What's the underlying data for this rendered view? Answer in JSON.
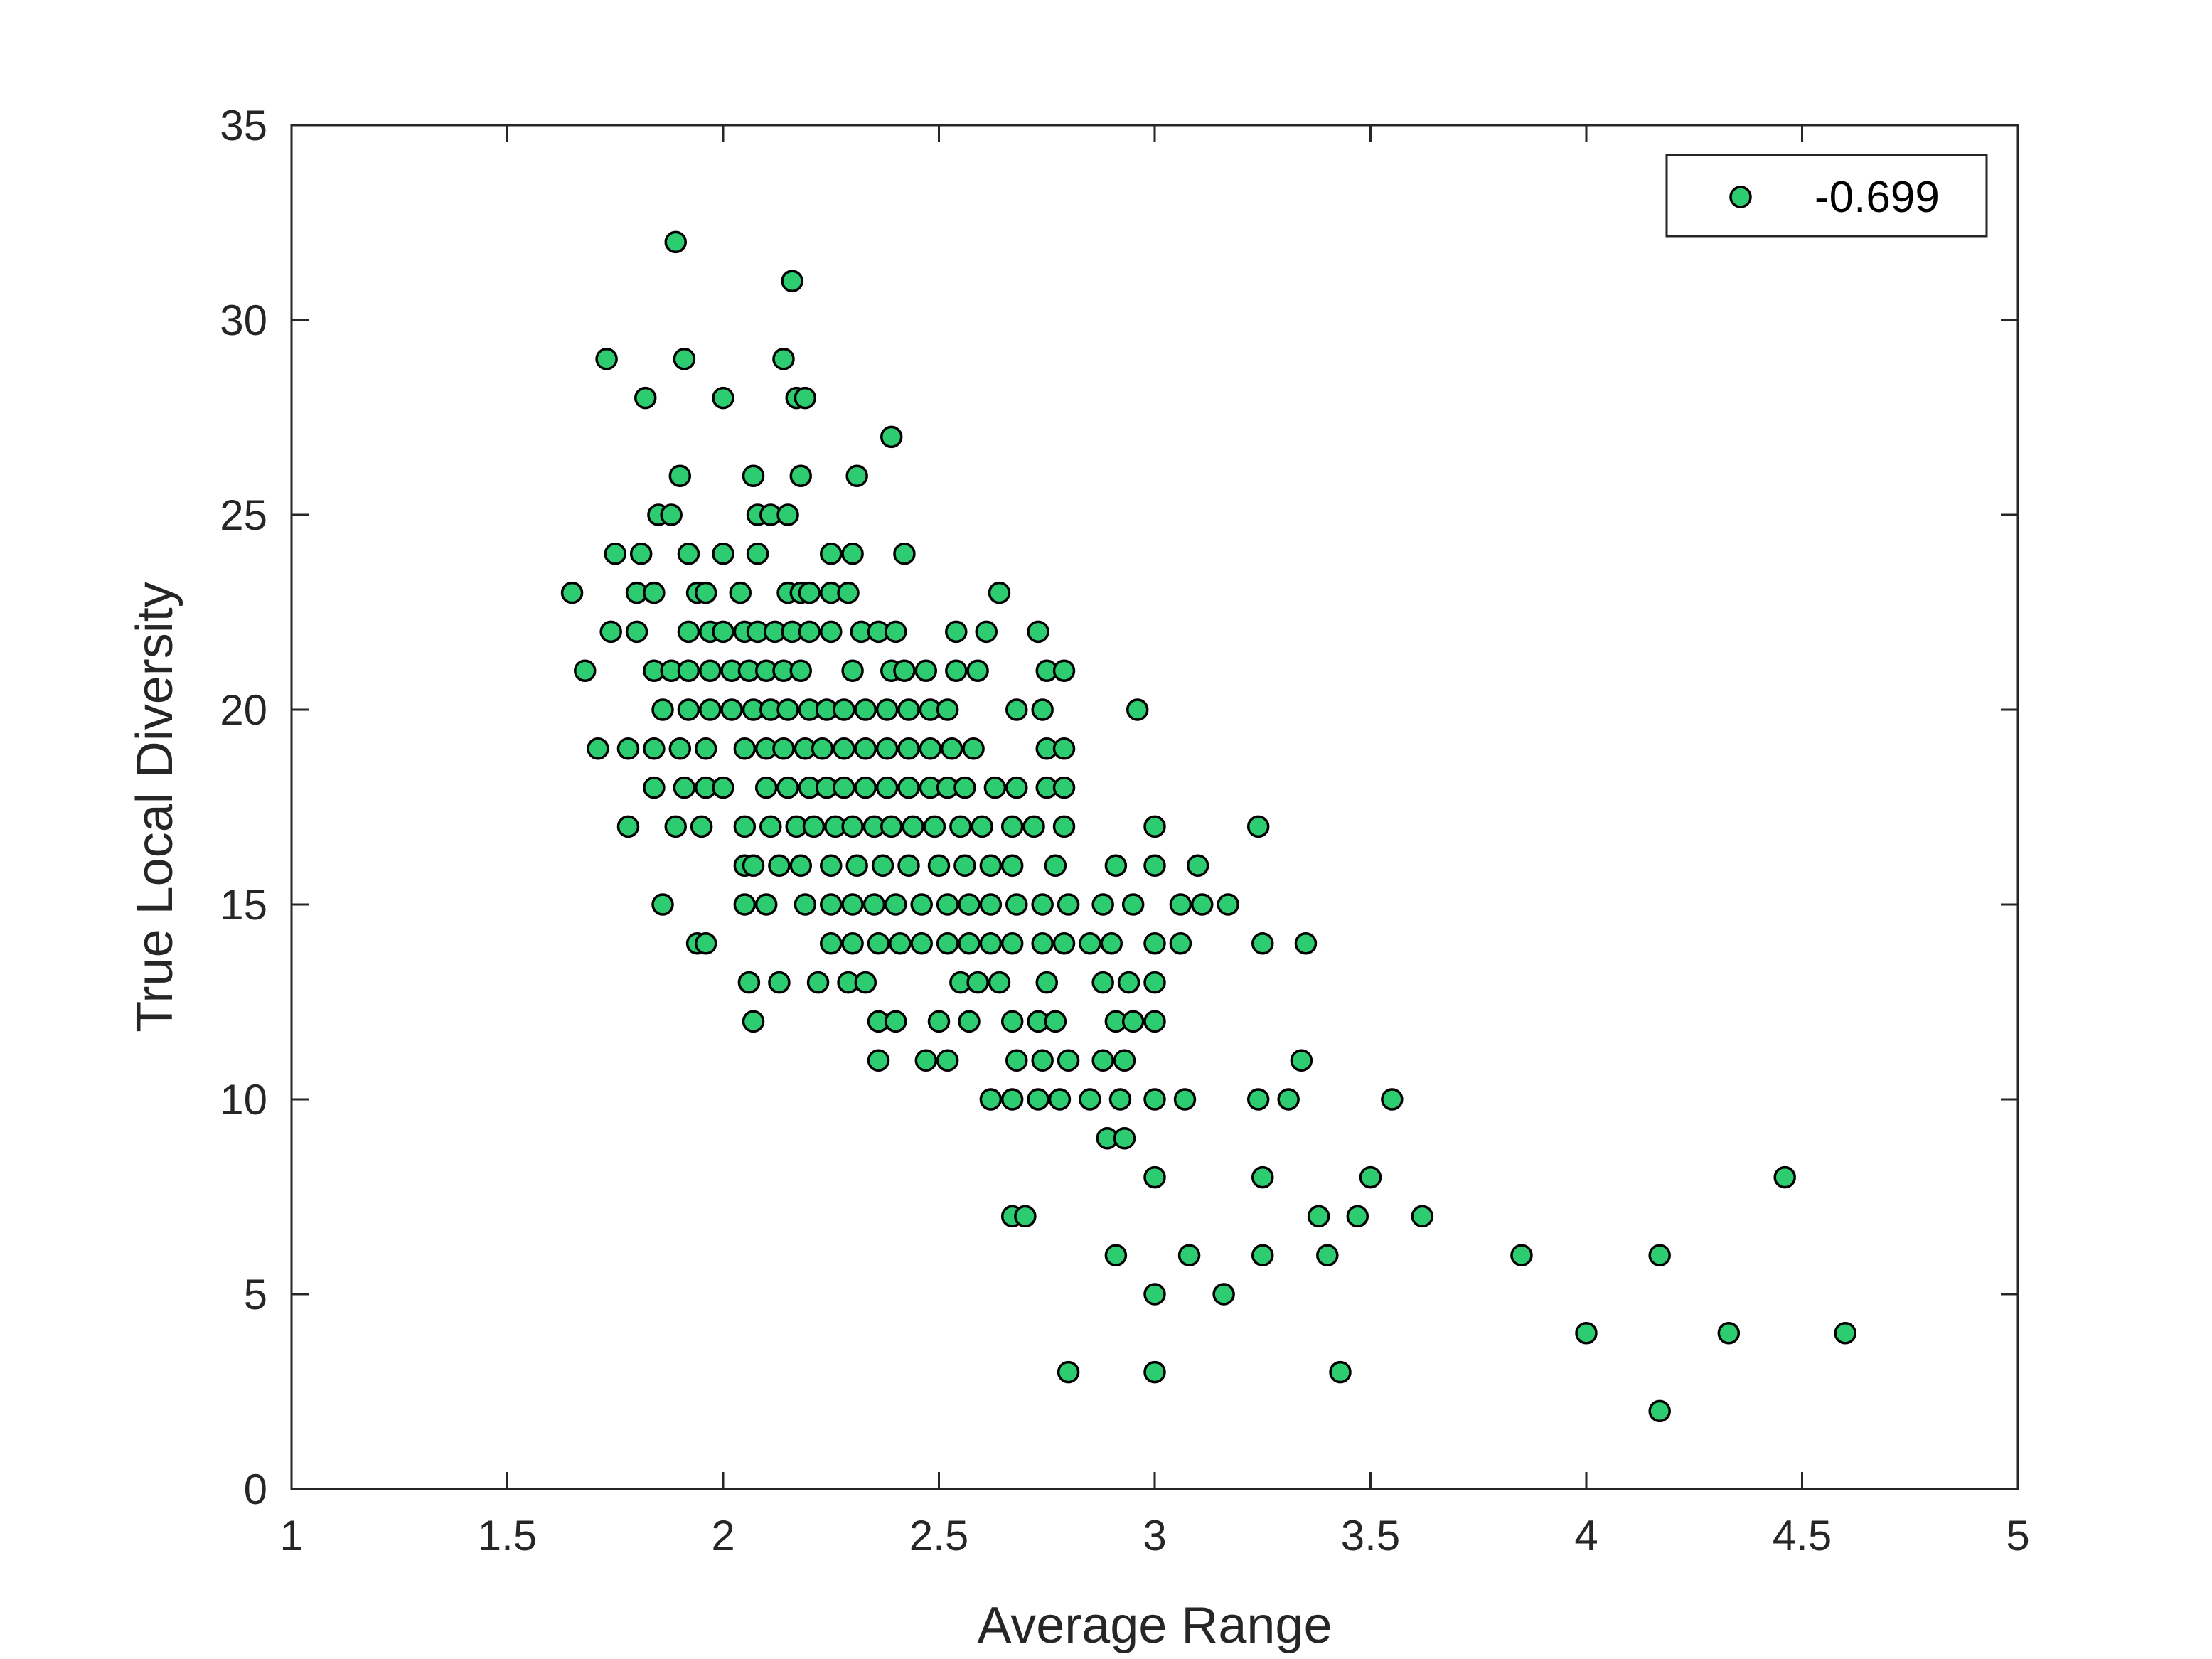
{
  "chart_data": {
    "type": "scatter",
    "xlabel": "Average Range",
    "ylabel": "True Local Diversity",
    "xlim": [
      1,
      5
    ],
    "ylim": [
      0,
      35
    ],
    "xticks": [
      1,
      1.5,
      2,
      2.5,
      3,
      3.5,
      4,
      4.5,
      5
    ],
    "yticks": [
      0,
      5,
      10,
      15,
      20,
      25,
      30,
      35
    ],
    "xtick_labels": [
      "1",
      "1.5",
      "2",
      "2.5",
      "3",
      "3.5",
      "4",
      "4.5",
      "5"
    ],
    "ytick_labels": [
      "0",
      "5",
      "10",
      "15",
      "20",
      "25",
      "30",
      "35"
    ],
    "grid": false,
    "legend": {
      "position": "top-right",
      "entries": [
        "-0.699"
      ]
    },
    "colors": {
      "marker_fill": "#2ecc71",
      "marker_edge": "#000000",
      "axes": "#262626"
    },
    "series": [
      {
        "name": "-0.699",
        "points": [
          [
            1.89,
            32
          ],
          [
            2.16,
            31
          ],
          [
            1.73,
            29
          ],
          [
            1.91,
            29
          ],
          [
            2.14,
            29
          ],
          [
            1.82,
            28
          ],
          [
            2.0,
            28
          ],
          [
            2.17,
            28
          ],
          [
            2.19,
            28
          ],
          [
            2.39,
            27
          ],
          [
            1.9,
            26
          ],
          [
            2.07,
            26
          ],
          [
            2.18,
            26
          ],
          [
            2.31,
            26
          ],
          [
            1.85,
            25
          ],
          [
            1.88,
            25
          ],
          [
            2.08,
            25
          ],
          [
            2.11,
            25
          ],
          [
            2.15,
            25
          ],
          [
            1.75,
            24
          ],
          [
            1.81,
            24
          ],
          [
            1.92,
            24
          ],
          [
            2.0,
            24
          ],
          [
            2.08,
            24
          ],
          [
            2.25,
            24
          ],
          [
            2.3,
            24
          ],
          [
            2.42,
            24
          ],
          [
            1.65,
            23
          ],
          [
            1.8,
            23
          ],
          [
            1.84,
            23
          ],
          [
            1.94,
            23
          ],
          [
            1.96,
            23
          ],
          [
            2.04,
            23
          ],
          [
            2.15,
            23
          ],
          [
            2.18,
            23
          ],
          [
            2.2,
            23
          ],
          [
            2.25,
            23
          ],
          [
            2.29,
            23
          ],
          [
            2.64,
            23
          ],
          [
            1.74,
            22
          ],
          [
            1.8,
            22
          ],
          [
            1.92,
            22
          ],
          [
            1.97,
            22
          ],
          [
            2.0,
            22
          ],
          [
            2.05,
            22
          ],
          [
            2.08,
            22
          ],
          [
            2.12,
            22
          ],
          [
            2.16,
            22
          ],
          [
            2.2,
            22
          ],
          [
            2.25,
            22
          ],
          [
            2.32,
            22
          ],
          [
            2.36,
            22
          ],
          [
            2.4,
            22
          ],
          [
            2.54,
            22
          ],
          [
            2.61,
            22
          ],
          [
            2.73,
            22
          ],
          [
            1.68,
            21
          ],
          [
            1.84,
            21
          ],
          [
            1.88,
            21
          ],
          [
            1.92,
            21
          ],
          [
            1.97,
            21
          ],
          [
            2.02,
            21
          ],
          [
            2.06,
            21
          ],
          [
            2.1,
            21
          ],
          [
            2.14,
            21
          ],
          [
            2.18,
            21
          ],
          [
            2.3,
            21
          ],
          [
            2.39,
            21
          ],
          [
            2.42,
            21
          ],
          [
            2.47,
            21
          ],
          [
            2.54,
            21
          ],
          [
            2.59,
            21
          ],
          [
            2.75,
            21
          ],
          [
            2.79,
            21
          ],
          [
            1.86,
            20
          ],
          [
            1.92,
            20
          ],
          [
            1.97,
            20
          ],
          [
            2.02,
            20
          ],
          [
            2.07,
            20
          ],
          [
            2.11,
            20
          ],
          [
            2.15,
            20
          ],
          [
            2.2,
            20
          ],
          [
            2.24,
            20
          ],
          [
            2.28,
            20
          ],
          [
            2.33,
            20
          ],
          [
            2.38,
            20
          ],
          [
            2.43,
            20
          ],
          [
            2.48,
            20
          ],
          [
            2.52,
            20
          ],
          [
            2.68,
            20
          ],
          [
            2.74,
            20
          ],
          [
            2.96,
            20
          ],
          [
            1.71,
            19
          ],
          [
            1.78,
            19
          ],
          [
            1.84,
            19
          ],
          [
            1.9,
            19
          ],
          [
            1.96,
            19
          ],
          [
            2.05,
            19
          ],
          [
            2.1,
            19
          ],
          [
            2.14,
            19
          ],
          [
            2.19,
            19
          ],
          [
            2.23,
            19
          ],
          [
            2.28,
            19
          ],
          [
            2.33,
            19
          ],
          [
            2.38,
            19
          ],
          [
            2.43,
            19
          ],
          [
            2.48,
            19
          ],
          [
            2.53,
            19
          ],
          [
            2.58,
            19
          ],
          [
            2.75,
            19
          ],
          [
            2.79,
            19
          ],
          [
            1.84,
            18
          ],
          [
            1.91,
            18
          ],
          [
            1.96,
            18
          ],
          [
            2.0,
            18
          ],
          [
            2.1,
            18
          ],
          [
            2.15,
            18
          ],
          [
            2.2,
            18
          ],
          [
            2.24,
            18
          ],
          [
            2.28,
            18
          ],
          [
            2.33,
            18
          ],
          [
            2.38,
            18
          ],
          [
            2.43,
            18
          ],
          [
            2.48,
            18
          ],
          [
            2.52,
            18
          ],
          [
            2.56,
            18
          ],
          [
            2.63,
            18
          ],
          [
            2.68,
            18
          ],
          [
            2.75,
            18
          ],
          [
            2.79,
            18
          ],
          [
            1.78,
            17
          ],
          [
            1.89,
            17
          ],
          [
            1.95,
            17
          ],
          [
            2.05,
            17
          ],
          [
            2.11,
            17
          ],
          [
            2.17,
            17
          ],
          [
            2.21,
            17
          ],
          [
            2.26,
            17
          ],
          [
            2.3,
            17
          ],
          [
            2.35,
            17
          ],
          [
            2.39,
            17
          ],
          [
            2.44,
            17
          ],
          [
            2.49,
            17
          ],
          [
            2.55,
            17
          ],
          [
            2.6,
            17
          ],
          [
            2.67,
            17
          ],
          [
            2.72,
            17
          ],
          [
            2.79,
            17
          ],
          [
            3.0,
            17
          ],
          [
            3.24,
            17
          ],
          [
            2.05,
            16
          ],
          [
            2.07,
            16
          ],
          [
            2.13,
            16
          ],
          [
            2.18,
            16
          ],
          [
            2.25,
            16
          ],
          [
            2.31,
            16
          ],
          [
            2.37,
            16
          ],
          [
            2.43,
            16
          ],
          [
            2.5,
            16
          ],
          [
            2.56,
            16
          ],
          [
            2.62,
            16
          ],
          [
            2.67,
            16
          ],
          [
            2.77,
            16
          ],
          [
            2.91,
            16
          ],
          [
            3.0,
            16
          ],
          [
            3.1,
            16
          ],
          [
            1.86,
            15
          ],
          [
            2.05,
            15
          ],
          [
            2.1,
            15
          ],
          [
            2.19,
            15
          ],
          [
            2.25,
            15
          ],
          [
            2.3,
            15
          ],
          [
            2.35,
            15
          ],
          [
            2.4,
            15
          ],
          [
            2.46,
            15
          ],
          [
            2.52,
            15
          ],
          [
            2.57,
            15
          ],
          [
            2.62,
            15
          ],
          [
            2.68,
            15
          ],
          [
            2.74,
            15
          ],
          [
            2.8,
            15
          ],
          [
            2.88,
            15
          ],
          [
            2.95,
            15
          ],
          [
            3.06,
            15
          ],
          [
            3.11,
            15
          ],
          [
            3.17,
            15
          ],
          [
            1.94,
            14
          ],
          [
            1.96,
            14
          ],
          [
            2.25,
            14
          ],
          [
            2.3,
            14
          ],
          [
            2.36,
            14
          ],
          [
            2.41,
            14
          ],
          [
            2.46,
            14
          ],
          [
            2.52,
            14
          ],
          [
            2.57,
            14
          ],
          [
            2.62,
            14
          ],
          [
            2.67,
            14
          ],
          [
            2.74,
            14
          ],
          [
            2.79,
            14
          ],
          [
            2.85,
            14
          ],
          [
            2.9,
            14
          ],
          [
            3.0,
            14
          ],
          [
            3.06,
            14
          ],
          [
            3.25,
            14
          ],
          [
            3.35,
            14
          ],
          [
            2.06,
            13
          ],
          [
            2.13,
            13
          ],
          [
            2.22,
            13
          ],
          [
            2.29,
            13
          ],
          [
            2.33,
            13
          ],
          [
            2.55,
            13
          ],
          [
            2.59,
            13
          ],
          [
            2.64,
            13
          ],
          [
            2.75,
            13
          ],
          [
            2.88,
            13
          ],
          [
            2.94,
            13
          ],
          [
            3.0,
            13
          ],
          [
            2.07,
            12
          ],
          [
            2.36,
            12
          ],
          [
            2.4,
            12
          ],
          [
            2.5,
            12
          ],
          [
            2.57,
            12
          ],
          [
            2.67,
            12
          ],
          [
            2.73,
            12
          ],
          [
            2.77,
            12
          ],
          [
            2.91,
            12
          ],
          [
            2.95,
            12
          ],
          [
            3.0,
            12
          ],
          [
            2.36,
            11
          ],
          [
            2.47,
            11
          ],
          [
            2.52,
            11
          ],
          [
            2.68,
            11
          ],
          [
            2.74,
            11
          ],
          [
            2.8,
            11
          ],
          [
            2.88,
            11
          ],
          [
            2.93,
            11
          ],
          [
            3.34,
            11
          ],
          [
            2.62,
            10
          ],
          [
            2.67,
            10
          ],
          [
            2.73,
            10
          ],
          [
            2.78,
            10
          ],
          [
            2.85,
            10
          ],
          [
            2.92,
            10
          ],
          [
            3.0,
            10
          ],
          [
            3.07,
            10
          ],
          [
            3.24,
            10
          ],
          [
            3.31,
            10
          ],
          [
            3.55,
            10
          ],
          [
            2.89,
            9
          ],
          [
            2.93,
            9
          ],
          [
            3.0,
            8
          ],
          [
            3.25,
            8
          ],
          [
            3.5,
            8
          ],
          [
            4.46,
            8
          ],
          [
            2.67,
            7
          ],
          [
            2.7,
            7
          ],
          [
            3.38,
            7
          ],
          [
            3.47,
            7
          ],
          [
            3.62,
            7
          ],
          [
            2.91,
            6
          ],
          [
            3.08,
            6
          ],
          [
            3.25,
            6
          ],
          [
            3.4,
            6
          ],
          [
            3.85,
            6
          ],
          [
            4.17,
            6
          ],
          [
            3.0,
            5
          ],
          [
            3.16,
            5
          ],
          [
            4.0,
            4
          ],
          [
            4.33,
            4
          ],
          [
            4.6,
            4
          ],
          [
            2.8,
            3
          ],
          [
            3.0,
            3
          ],
          [
            3.43,
            3
          ],
          [
            4.17,
            2
          ]
        ]
      }
    ]
  }
}
